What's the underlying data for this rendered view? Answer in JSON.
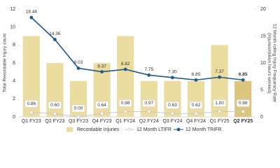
{
  "chart_data": {
    "type": "bar-line",
    "y_label": "Total Recordable Injury count",
    "y2_label": "12 Month rolling Injury Frequency Rate\n(Injuries/million hours worked)",
    "categories": [
      "Q1 FY23",
      "Q2 FY23",
      "Q3 FY23",
      "Q4 FY23",
      "Q1 FY24",
      "Q2 FY24",
      "Q3 FY24",
      "Q4 FY24",
      "Q1 FY25",
      "Q2 FY25"
    ],
    "ylim": [
      0,
      12
    ],
    "yticks": [
      0,
      2,
      4,
      6,
      8,
      10,
      12
    ],
    "y2lim": [
      0,
      20
    ],
    "y2ticks": [
      0,
      5,
      10,
      15,
      20
    ],
    "series": [
      {
        "name": "Recordable Injuries",
        "type": "bar",
        "color": "#ebdc9f",
        "colors": [
          "#ebdc9f",
          "#ebdc9f",
          "#ebdc9f",
          "#ebdc9f",
          "#ebdc9f",
          "#ebdc9f",
          "#ebdc9f",
          "#ebdc9f",
          "#ebdc9f",
          "#dcc57c"
        ],
        "values": [
          9,
          6,
          4,
          6,
          9,
          4,
          4,
          4,
          8,
          4
        ]
      },
      {
        "name": "12 Month LTIFR",
        "type": "line",
        "axis": "y2",
        "color": "#c8c8c8",
        "marker": "hollow",
        "values": [
          0.86,
          0.6,
          0,
          0.64,
          0.98,
          0.97,
          0.63,
          0.62,
          1,
          0.98
        ],
        "value_labels": [
          "0.86",
          "0.60",
          "0.00",
          "0.64",
          "0.98",
          "0.97",
          "0.63",
          "0.62",
          "1.00",
          "0.98"
        ]
      },
      {
        "name": "12 Month TRIFR",
        "type": "line",
        "axis": "y2",
        "color": "#1f5a8a",
        "marker": "filled",
        "values": [
          18.44,
          14.36,
          9.03,
          8.37,
          8.82,
          7.75,
          7.3,
          6.85,
          7.37,
          6.85
        ],
        "value_labels": [
          "18.44",
          "14.36",
          "9.03",
          "8.37",
          "8.82",
          "7.75",
          "7.30",
          "6.85",
          "7.37",
          "6.85"
        ]
      }
    ]
  }
}
